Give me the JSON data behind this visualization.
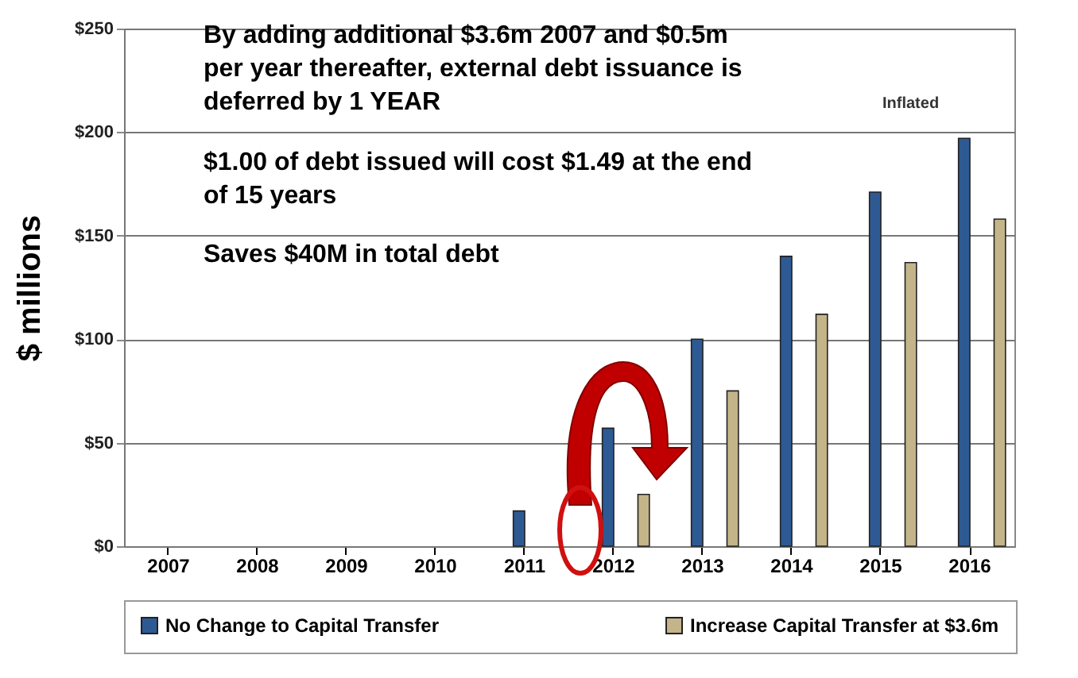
{
  "chart_data": {
    "type": "bar",
    "annotations": [
      "By adding additional $3.6m 2007 and $0.5m per year thereafter, external debt issuance is deferred by 1 YEAR",
      "$1.00 of debt issued will cost $1.49 at the end of 15 years",
      "Saves $40M in total debt",
      "Inflated"
    ],
    "ylabel": "$ millions",
    "categories": [
      "2007",
      "2008",
      "2009",
      "2010",
      "2011",
      "2012",
      "2013",
      "2014",
      "2015",
      "2016"
    ],
    "series": [
      {
        "name": "No Change to Capital Transfer",
        "color": "#2e5a94",
        "values": [
          0,
          0,
          0,
          0,
          17,
          57,
          100,
          140,
          171,
          197
        ]
      },
      {
        "name": "Increase Capital Transfer at $3.6m",
        "color": "#c4b48a",
        "values": [
          0,
          0,
          0,
          0,
          0,
          25,
          75,
          112,
          137,
          158
        ]
      }
    ],
    "ylim": [
      0,
      250
    ],
    "yticks": [
      {
        "value": 0,
        "label": "$0"
      },
      {
        "value": 50,
        "label": "$50"
      },
      {
        "value": 100,
        "label": "$100"
      },
      {
        "value": 150,
        "label": "$150"
      },
      {
        "value": 200,
        "label": "$200"
      },
      {
        "value": 250,
        "label": "$250"
      }
    ],
    "grid": "y",
    "legend": "bottom"
  }
}
